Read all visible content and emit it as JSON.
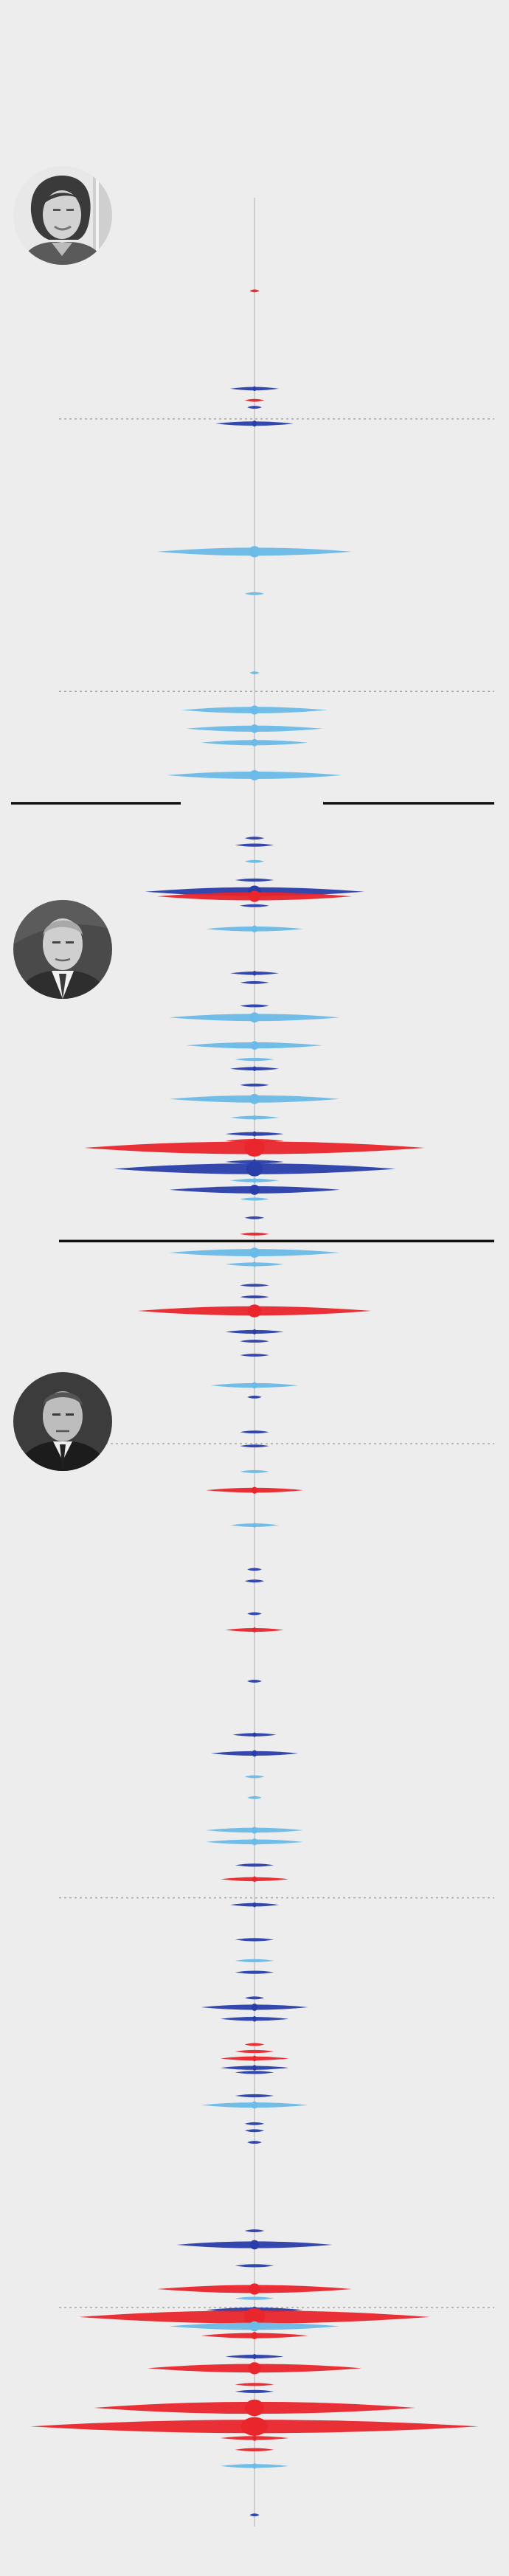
{
  "colors": {
    "background": "#ededed",
    "dark_blue": "#2a3ea9",
    "light_blue": "#6bbbe8",
    "red": "#e8262c",
    "axis": "#bbbbbb",
    "grid": "#a8a8a8",
    "divider": "#111111"
  },
  "presidents": [
    {
      "id": "dilma",
      "icon": "portrait-dilma-icon"
    },
    {
      "id": "temer",
      "icon": "portrait-temer-icon"
    },
    {
      "id": "bolsonaro",
      "icon": "portrait-bolsonaro-icon"
    }
  ],
  "chart_data": {
    "type": "area",
    "description_series_colors": [
      "dark_blue",
      "light_blue",
      "red"
    ],
    "max_width_units": 100,
    "time_range": [
      0,
      1000
    ],
    "gridlines": [
      95,
      212,
      535,
      730,
      906
    ],
    "term_boundaries": [
      260,
      448
    ],
    "events": [
      {
        "t": 40,
        "w": 2,
        "c": "red"
      },
      {
        "t": 82,
        "w": 10,
        "c": "dark_blue"
      },
      {
        "t": 87,
        "w": 4,
        "c": "red"
      },
      {
        "t": 90,
        "w": 3,
        "c": "dark_blue"
      },
      {
        "t": 97,
        "w": 16,
        "c": "dark_blue"
      },
      {
        "t": 152,
        "w": 40,
        "c": "light_blue"
      },
      {
        "t": 170,
        "w": 4,
        "c": "light_blue"
      },
      {
        "t": 204,
        "w": 2,
        "c": "light_blue"
      },
      {
        "t": 220,
        "w": 30,
        "c": "light_blue"
      },
      {
        "t": 228,
        "w": 28,
        "c": "light_blue"
      },
      {
        "t": 234,
        "w": 22,
        "c": "light_blue"
      },
      {
        "t": 248,
        "w": 36,
        "c": "light_blue"
      },
      {
        "t": 275,
        "w": 4,
        "c": "dark_blue"
      },
      {
        "t": 278,
        "w": 8,
        "c": "dark_blue"
      },
      {
        "t": 285,
        "w": 4,
        "c": "light_blue"
      },
      {
        "t": 293,
        "w": 8,
        "c": "dark_blue"
      },
      {
        "t": 298,
        "w": 45,
        "c": "dark_blue"
      },
      {
        "t": 300,
        "w": 40,
        "c": "red"
      },
      {
        "t": 304,
        "w": 6,
        "c": "dark_blue"
      },
      {
        "t": 314,
        "w": 20,
        "c": "light_blue"
      },
      {
        "t": 333,
        "w": 10,
        "c": "dark_blue"
      },
      {
        "t": 337,
        "w": 6,
        "c": "dark_blue"
      },
      {
        "t": 347,
        "w": 6,
        "c": "dark_blue"
      },
      {
        "t": 352,
        "w": 35,
        "c": "light_blue"
      },
      {
        "t": 364,
        "w": 28,
        "c": "light_blue"
      },
      {
        "t": 370,
        "w": 8,
        "c": "light_blue"
      },
      {
        "t": 374,
        "w": 10,
        "c": "dark_blue"
      },
      {
        "t": 381,
        "w": 6,
        "c": "dark_blue"
      },
      {
        "t": 387,
        "w": 35,
        "c": "light_blue"
      },
      {
        "t": 395,
        "w": 10,
        "c": "light_blue"
      },
      {
        "t": 402,
        "w": 12,
        "c": "dark_blue"
      },
      {
        "t": 405,
        "w": 12,
        "c": "red"
      },
      {
        "t": 408,
        "w": 70,
        "c": "red"
      },
      {
        "t": 414,
        "w": 12,
        "c": "dark_blue"
      },
      {
        "t": 417,
        "w": 58,
        "c": "dark_blue"
      },
      {
        "t": 422,
        "w": 10,
        "c": "light_blue"
      },
      {
        "t": 426,
        "w": 35,
        "c": "dark_blue"
      },
      {
        "t": 430,
        "w": 6,
        "c": "light_blue"
      },
      {
        "t": 438,
        "w": 4,
        "c": "dark_blue"
      },
      {
        "t": 445,
        "w": 6,
        "c": "red"
      },
      {
        "t": 453,
        "w": 35,
        "c": "light_blue"
      },
      {
        "t": 458,
        "w": 12,
        "c": "light_blue"
      },
      {
        "t": 467,
        "w": 6,
        "c": "dark_blue"
      },
      {
        "t": 472,
        "w": 6,
        "c": "dark_blue"
      },
      {
        "t": 478,
        "w": 48,
        "c": "red"
      },
      {
        "t": 487,
        "w": 12,
        "c": "dark_blue"
      },
      {
        "t": 491,
        "w": 6,
        "c": "dark_blue"
      },
      {
        "t": 497,
        "w": 6,
        "c": "dark_blue"
      },
      {
        "t": 510,
        "w": 18,
        "c": "light_blue"
      },
      {
        "t": 515,
        "w": 3,
        "c": "dark_blue"
      },
      {
        "t": 530,
        "w": 6,
        "c": "dark_blue"
      },
      {
        "t": 536,
        "w": 6,
        "c": "dark_blue"
      },
      {
        "t": 547,
        "w": 6,
        "c": "light_blue"
      },
      {
        "t": 555,
        "w": 20,
        "c": "red"
      },
      {
        "t": 570,
        "w": 10,
        "c": "light_blue"
      },
      {
        "t": 589,
        "w": 3,
        "c": "dark_blue"
      },
      {
        "t": 594,
        "w": 4,
        "c": "dark_blue"
      },
      {
        "t": 608,
        "w": 3,
        "c": "dark_blue"
      },
      {
        "t": 615,
        "w": 12,
        "c": "red"
      },
      {
        "t": 637,
        "w": 3,
        "c": "dark_blue"
      },
      {
        "t": 660,
        "w": 9,
        "c": "dark_blue"
      },
      {
        "t": 668,
        "w": 18,
        "c": "dark_blue"
      },
      {
        "t": 678,
        "w": 4,
        "c": "light_blue"
      },
      {
        "t": 687,
        "w": 3,
        "c": "light_blue"
      },
      {
        "t": 701,
        "w": 20,
        "c": "light_blue"
      },
      {
        "t": 706,
        "w": 20,
        "c": "light_blue"
      },
      {
        "t": 716,
        "w": 8,
        "c": "dark_blue"
      },
      {
        "t": 722,
        "w": 14,
        "c": "red"
      },
      {
        "t": 733,
        "w": 10,
        "c": "dark_blue"
      },
      {
        "t": 748,
        "w": 8,
        "c": "dark_blue"
      },
      {
        "t": 757,
        "w": 8,
        "c": "light_blue"
      },
      {
        "t": 762,
        "w": 8,
        "c": "dark_blue"
      },
      {
        "t": 773,
        "w": 4,
        "c": "dark_blue"
      },
      {
        "t": 777,
        "w": 22,
        "c": "dark_blue"
      },
      {
        "t": 782,
        "w": 14,
        "c": "dark_blue"
      },
      {
        "t": 793,
        "w": 4,
        "c": "red"
      },
      {
        "t": 796,
        "w": 8,
        "c": "red"
      },
      {
        "t": 799,
        "w": 14,
        "c": "red"
      },
      {
        "t": 803,
        "w": 14,
        "c": "dark_blue"
      },
      {
        "t": 805,
        "w": 8,
        "c": "dark_blue"
      },
      {
        "t": 815,
        "w": 8,
        "c": "dark_blue"
      },
      {
        "t": 819,
        "w": 22,
        "c": "light_blue"
      },
      {
        "t": 827,
        "w": 4,
        "c": "dark_blue"
      },
      {
        "t": 830,
        "w": 4,
        "c": "dark_blue"
      },
      {
        "t": 835,
        "w": 3,
        "c": "dark_blue"
      },
      {
        "t": 873,
        "w": 4,
        "c": "dark_blue"
      },
      {
        "t": 879,
        "w": 32,
        "c": "dark_blue"
      },
      {
        "t": 888,
        "w": 8,
        "c": "dark_blue"
      },
      {
        "t": 898,
        "w": 40,
        "c": "red"
      },
      {
        "t": 902,
        "w": 8,
        "c": "light_blue"
      },
      {
        "t": 907,
        "w": 20,
        "c": "dark_blue"
      },
      {
        "t": 910,
        "w": 72,
        "c": "red"
      },
      {
        "t": 914,
        "w": 35,
        "c": "light_blue"
      },
      {
        "t": 918,
        "w": 22,
        "c": "red"
      },
      {
        "t": 927,
        "w": 12,
        "c": "dark_blue"
      },
      {
        "t": 932,
        "w": 44,
        "c": "red"
      },
      {
        "t": 939,
        "w": 8,
        "c": "red"
      },
      {
        "t": 942,
        "w": 8,
        "c": "dark_blue"
      },
      {
        "t": 949,
        "w": 66,
        "c": "red"
      },
      {
        "t": 957,
        "w": 92,
        "c": "red"
      },
      {
        "t": 962,
        "w": 14,
        "c": "red"
      },
      {
        "t": 967,
        "w": 8,
        "c": "red"
      },
      {
        "t": 974,
        "w": 14,
        "c": "light_blue"
      },
      {
        "t": 995,
        "w": 2,
        "c": "dark_blue"
      }
    ]
  }
}
